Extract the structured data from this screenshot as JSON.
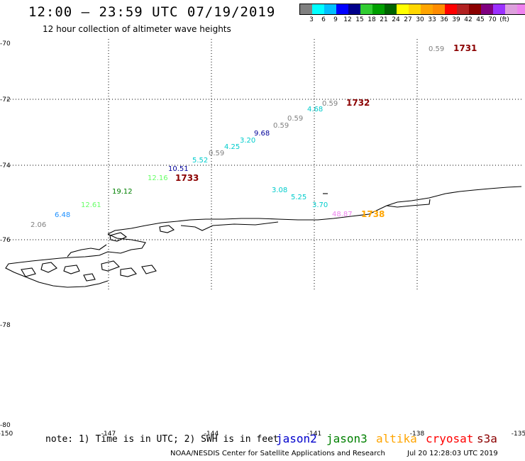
{
  "header": {
    "title": "12:00 – 23:59 UTC 07/19/2019",
    "subtitle": "12 hour collection of altimeter wave heights"
  },
  "scale": {
    "colors": [
      "#808080",
      "#00ffff",
      "#00bfff",
      "#0000ff",
      "#00008b",
      "#32cd32",
      "#00a000",
      "#006400",
      "#ffff00",
      "#ffd700",
      "#ffa500",
      "#ff8c00",
      "#ff0000",
      "#b22222",
      "#8b0000",
      "#800080",
      "#9b30ff",
      "#dda0dd",
      "#ee82ee",
      "#000000"
    ],
    "labels": [
      "3",
      "6",
      "9",
      "12",
      "15",
      "18",
      "21",
      "24",
      "27",
      "30",
      "33",
      "36",
      "39",
      "42",
      "45",
      "70",
      "(ft)"
    ]
  },
  "axes": {
    "lat_labels": [
      "-70",
      "-72",
      "-74",
      "-76",
      "-78",
      "-80"
    ],
    "lon_labels": [
      "-150",
      "-147",
      "-144",
      "-141",
      "-138",
      "-135"
    ]
  },
  "wave_points": [
    {
      "v": "0.59",
      "c": "#808080"
    },
    {
      "v": "0.59",
      "c": "#808080"
    },
    {
      "v": "4.68",
      "c": "#00cccc"
    },
    {
      "v": "0.59",
      "c": "#808080"
    },
    {
      "v": "0.59",
      "c": "#808080"
    },
    {
      "v": "9.68",
      "c": "#000099"
    },
    {
      "v": "3.20",
      "c": "#00cccc"
    },
    {
      "v": "4.25",
      "c": "#00cccc"
    },
    {
      "v": "0.59",
      "c": "#808080"
    },
    {
      "v": "5.52",
      "c": "#00cccc"
    },
    {
      "v": "10.51",
      "c": "#000099"
    },
    {
      "v": "12.16",
      "c": "#66ff66"
    },
    {
      "v": "19.12",
      "c": "#008000"
    },
    {
      "v": "12.61",
      "c": "#66ff66"
    },
    {
      "v": "6.48",
      "c": "#1e90ff"
    },
    {
      "v": "2.06",
      "c": "#808080"
    },
    {
      "v": "3.08",
      "c": "#00cccc"
    },
    {
      "v": "5.25",
      "c": "#00cccc"
    },
    {
      "v": "3.70",
      "c": "#00cccc"
    },
    {
      "v": "48.87",
      "c": "#ee82ee"
    }
  ],
  "time_labels": [
    {
      "t": "1731",
      "c": "#8b0000"
    },
    {
      "t": "1732",
      "c": "#8b0000"
    },
    {
      "t": "1733",
      "c": "#8b0000"
    },
    {
      "t": "1738",
      "c": "#ffa500"
    }
  ],
  "footer": {
    "note": "note: 1) Time is in UTC; 2) SWH is in feet",
    "satellites": [
      {
        "name": "jason2",
        "color": "#0000cc"
      },
      {
        "name": "jason3",
        "color": "#008000"
      },
      {
        "name": "altika",
        "color": "#ffa500"
      },
      {
        "name": "cryosat",
        "color": "#ff0000"
      },
      {
        "name": "s3a",
        "color": "#8b0000"
      }
    ],
    "credit": "NOAA/NESDIS Center for Satellite Applications and Research",
    "date": "Jul 20 12:28:03 UTC 2019"
  }
}
